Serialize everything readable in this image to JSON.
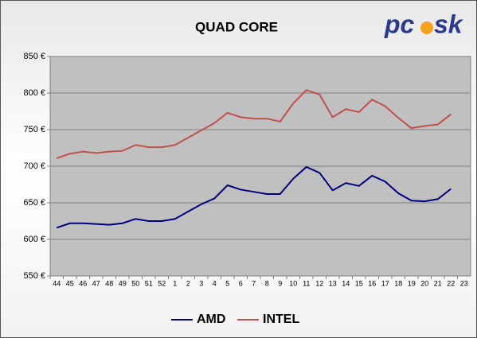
{
  "chart_data": {
    "type": "line",
    "title": "QUAD CORE",
    "logo": {
      "left": "pc",
      "right": "sk"
    },
    "categories": [
      "44",
      "45",
      "46",
      "47",
      "48",
      "49",
      "50",
      "51",
      "52",
      "1",
      "2",
      "3",
      "4",
      "5",
      "6",
      "7",
      "8",
      "9",
      "10",
      "11",
      "12",
      "13",
      "14",
      "15",
      "16",
      "17",
      "18",
      "19",
      "20",
      "21",
      "22",
      "23"
    ],
    "series": [
      {
        "name": "AMD",
        "color": "#000080",
        "values": [
          616,
          622,
          622,
          621,
          620,
          622,
          628,
          625,
          625,
          628,
          638,
          648,
          656,
          674,
          668,
          665,
          662,
          662,
          683,
          699,
          691,
          667,
          677,
          673,
          687,
          679,
          663,
          653,
          652,
          655,
          669,
          null
        ]
      },
      {
        "name": "INTEL",
        "color": "#c0504d",
        "values": [
          711,
          717,
          720,
          718,
          720,
          721,
          729,
          726,
          726,
          729,
          739,
          749,
          759,
          773,
          767,
          765,
          765,
          761,
          786,
          804,
          798,
          767,
          778,
          774,
          791,
          782,
          766,
          752,
          755,
          757,
          771,
          null
        ]
      }
    ],
    "ylim": [
      550,
      850
    ],
    "yticks": [
      {
        "value": 550,
        "label": "550 €"
      },
      {
        "value": 600,
        "label": "600 €"
      },
      {
        "value": 650,
        "label": "650 €"
      },
      {
        "value": 700,
        "label": "700 €"
      },
      {
        "value": 750,
        "label": "750 €"
      },
      {
        "value": 800,
        "label": "800 €"
      },
      {
        "value": 850,
        "label": "850 €"
      }
    ],
    "grid": true,
    "legend": "bottom"
  }
}
